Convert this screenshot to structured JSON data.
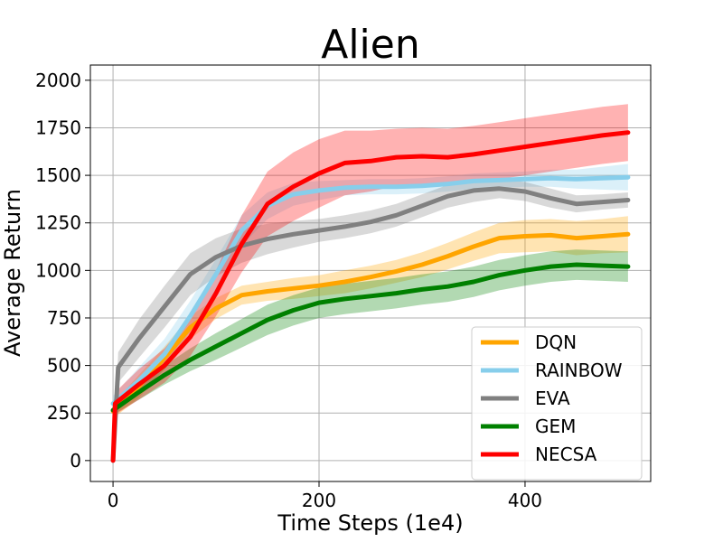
{
  "chart_data": {
    "type": "line",
    "title": "Alien",
    "xlabel": "Time Steps (1e4)",
    "ylabel": "Average Return",
    "xlim": [
      -22,
      522
    ],
    "ylim": [
      -110,
      2080
    ],
    "xticks": [
      0,
      200,
      400
    ],
    "yticks": [
      0,
      250,
      500,
      750,
      1000,
      1250,
      1500,
      1750,
      2000
    ],
    "grid": true,
    "legend_position": "lower-right",
    "series": [
      {
        "name": "DQN",
        "color": "#ffa500",
        "x": [
          0,
          25,
          50,
          75,
          100,
          125,
          150,
          175,
          200,
          225,
          250,
          275,
          300,
          325,
          350,
          375,
          400,
          425,
          450,
          475,
          500
        ],
        "y": [
          260,
          390,
          540,
          700,
          800,
          870,
          890,
          905,
          920,
          940,
          965,
          995,
          1030,
          1075,
          1125,
          1170,
          1180,
          1185,
          1170,
          1180,
          1190
        ],
        "band": [
          40,
          60,
          60,
          60,
          55,
          50,
          50,
          55,
          55,
          60,
          60,
          60,
          65,
          70,
          75,
          80,
          85,
          85,
          90,
          90,
          95
        ]
      },
      {
        "name": "RAINBOW",
        "color": "#87ceeb",
        "x": [
          0,
          25,
          50,
          75,
          100,
          125,
          150,
          175,
          200,
          225,
          250,
          275,
          300,
          325,
          350,
          375,
          400,
          425,
          450,
          475,
          500
        ],
        "y": [
          300,
          420,
          560,
          760,
          980,
          1210,
          1340,
          1400,
          1420,
          1435,
          1440,
          1440,
          1445,
          1455,
          1470,
          1475,
          1480,
          1485,
          1480,
          1485,
          1490
        ],
        "band": [
          40,
          70,
          80,
          80,
          80,
          80,
          70,
          60,
          50,
          40,
          40,
          40,
          40,
          40,
          40,
          40,
          40,
          45,
          50,
          60,
          70
        ]
      },
      {
        "name": "EVA",
        "color": "#808080",
        "x": [
          0,
          5,
          25,
          50,
          75,
          100,
          125,
          150,
          175,
          200,
          225,
          250,
          275,
          300,
          325,
          350,
          375,
          400,
          425,
          450,
          475,
          500
        ],
        "y": [
          0,
          490,
          640,
          810,
          980,
          1070,
          1130,
          1165,
          1190,
          1210,
          1230,
          1255,
          1290,
          1340,
          1390,
          1420,
          1430,
          1415,
          1380,
          1350,
          1360,
          1370
        ],
        "band": [
          0,
          80,
          100,
          110,
          110,
          100,
          90,
          80,
          70,
          60,
          60,
          60,
          60,
          60,
          60,
          60,
          50,
          50,
          50,
          45,
          40,
          40
        ]
      },
      {
        "name": "GEM",
        "color": "#008000",
        "x": [
          0,
          25,
          50,
          75,
          100,
          125,
          150,
          175,
          200,
          225,
          250,
          275,
          300,
          325,
          350,
          375,
          400,
          425,
          450,
          475,
          500
        ],
        "y": [
          265,
          360,
          450,
          530,
          600,
          670,
          740,
          790,
          830,
          850,
          865,
          880,
          900,
          915,
          940,
          975,
          1000,
          1020,
          1030,
          1025,
          1020
        ],
        "band": [
          25,
          40,
          50,
          60,
          70,
          75,
          80,
          80,
          80,
          80,
          80,
          80,
          80,
          80,
          80,
          80,
          80,
          80,
          80,
          80,
          80
        ]
      },
      {
        "name": "NECSA",
        "color": "#ff0000",
        "x": [
          0,
          2,
          25,
          50,
          75,
          100,
          125,
          150,
          175,
          200,
          225,
          250,
          275,
          300,
          325,
          350,
          375,
          400,
          425,
          450,
          475,
          500
        ],
        "y": [
          0,
          300,
          400,
          500,
          650,
          880,
          1140,
          1350,
          1440,
          1510,
          1565,
          1575,
          1595,
          1600,
          1595,
          1610,
          1630,
          1650,
          1670,
          1690,
          1710,
          1725
        ],
        "band": [
          0,
          60,
          80,
          90,
          100,
          120,
          150,
          170,
          180,
          180,
          170,
          160,
          150,
          150,
          150,
          150,
          150,
          150,
          150,
          150,
          150,
          150
        ]
      }
    ]
  }
}
